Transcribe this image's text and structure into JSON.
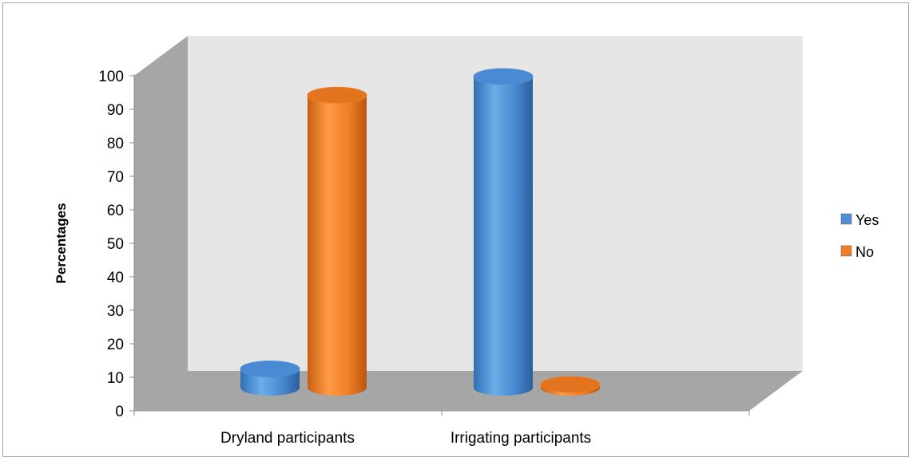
{
  "chart_data": {
    "type": "bar",
    "style": "3d-cylinder",
    "title": "",
    "xlabel": "",
    "ylabel": "Percentages",
    "ylim": [
      0,
      100
    ],
    "yticks": [
      0,
      10,
      20,
      30,
      40,
      50,
      60,
      70,
      80,
      90,
      100
    ],
    "categories": [
      "Dryland participants",
      "Irrigating participants"
    ],
    "series": [
      {
        "name": "Yes",
        "color": "#4f8fd6",
        "values": [
          6,
          100
        ]
      },
      {
        "name": "No",
        "color": "#f07e26",
        "values": [
          94,
          1
        ]
      }
    ],
    "grid": false,
    "legend_position": "right"
  }
}
